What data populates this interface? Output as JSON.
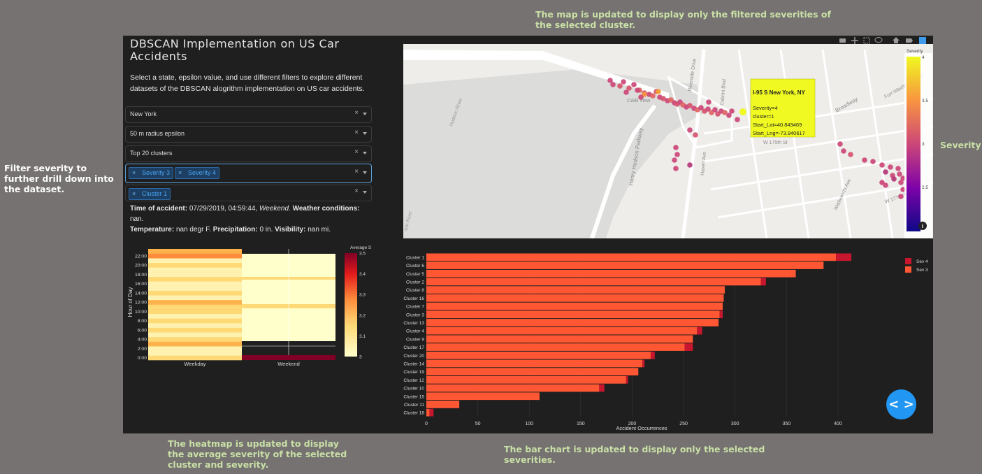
{
  "annotations": {
    "filter": "Filter severity to further drill down into the dataset.",
    "map": "The map is updated to display only the filtered severities of the selected cluster.",
    "heatmap": "The heatmap is updated to display the average severity of the selected cluster and severity.",
    "bar": "The bar chart  is updated to display only the selected severities.",
    "severity": "Severity"
  },
  "app": {
    "title": "DBSCAN Implementation on US Car Accidents",
    "description": "Select a state, epsilon value, and use different filters to explore different datasets of the DBSCAN alogrithm implementation on US car accidents."
  },
  "filters": {
    "state": "New York",
    "epsilon": "50 m radius epsilon",
    "clusters": "Top 20 clusters",
    "severity_tags": [
      "Severity 3",
      "Severity 4"
    ],
    "cluster_tags": [
      "Cluster 1"
    ],
    "clear_symbol": "×"
  },
  "info": {
    "time_label": "Time of accident:",
    "time_value": "07/29/2019, 04:59:44,",
    "day_value": "Weekend.",
    "weather_label": "Weather conditions:",
    "weather_value": "nan.",
    "temp_label": "Temperature:",
    "temp_value": "nan degr F.",
    "precip_label": "Precipitation:",
    "precip_value": "0 in.",
    "vis_label": "Visibility:",
    "vis_value": "nan mi."
  },
  "map": {
    "tooltip": {
      "title": "I-95 S New York, NY",
      "lines": [
        "Severity=4",
        "cluster=1",
        "Start_Lat=40.849469",
        "Start_Lng=-73.940617"
      ]
    },
    "colorbar_title": "Severity",
    "colorbar_ticks": [
      "4",
      "3.5",
      "3",
      "2.5"
    ],
    "street_labels": [
      "Henry Hudson Parkway",
      "Hudson River",
      "Broadway",
      "Wadsworth Ave",
      "W 177th St",
      "W 175th St",
      "Riverside Drive",
      "Cabrini Blvd",
      "Fort Washington Ave",
      "Haven Ave",
      "CWB View",
      "son River"
    ],
    "info_icon": "i",
    "modebar_icons": [
      "camera-icon",
      "pan-icon",
      "select-icon",
      "lasso-icon",
      "home-icon",
      "hover-icon",
      "plotly-logo-icon"
    ]
  },
  "heatmap": {
    "ylabel": "Hour of Day",
    "colorbar_title": "Average S",
    "x_categories": [
      "Weekday",
      "Weekend"
    ],
    "y_ticks": [
      "22:00",
      "20:00",
      "18:00",
      "16:00",
      "14:00",
      "12:00",
      "10:00",
      "8:00",
      "6:00",
      "4:00",
      "2:00",
      "0:00"
    ],
    "colorbar_ticks": [
      "3.5",
      "3.4",
      "3.3",
      "3.2",
      "3.1",
      "3"
    ]
  },
  "chart_data": {
    "type": "bar",
    "orientation": "horizontal",
    "categories": [
      "Cluster 1",
      "Cluster 6",
      "Cluster 5",
      "Cluster 2",
      "Cluster 8",
      "Cluster 16",
      "Cluster 7",
      "Cluster 3",
      "Cluster 13",
      "Cluster 4",
      "Cluster 9",
      "Cluster 17",
      "Cluster 20",
      "Cluster 14",
      "Cluster 19",
      "Cluster 12",
      "Cluster 10",
      "Cluster 15",
      "Cluster 11",
      "Cluster 18"
    ],
    "series": [
      {
        "name": "Sev 3",
        "color": "#ff5733",
        "values": [
          398,
          386,
          359,
          325,
          290,
          289,
          288,
          285,
          284,
          263,
          259,
          251,
          218,
          210,
          206,
          194,
          168,
          110,
          32,
          3
        ]
      },
      {
        "name": "Sev 4",
        "color": "#c7162e",
        "values": [
          15,
          0,
          0,
          5,
          0,
          0,
          0,
          3,
          0,
          5,
          0,
          8,
          4,
          2,
          0,
          2,
          5,
          0,
          0,
          4
        ]
      }
    ],
    "stacked": true,
    "xlabel": "Accident Occurrences",
    "xticks": [
      0,
      50,
      100,
      150,
      200,
      250,
      300,
      350,
      400
    ],
    "xlim": [
      0,
      415
    ],
    "legend_position": "top-right"
  },
  "nav_button": "< >"
}
